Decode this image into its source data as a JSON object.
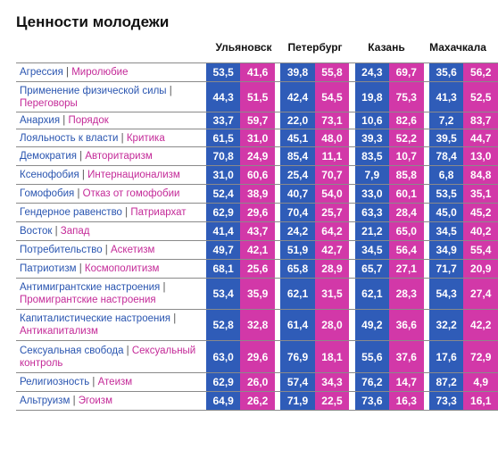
{
  "title": "Ценности молодежи",
  "colors": {
    "left_value": "#2f5cb8",
    "right_value": "#d238a8",
    "left_label": "#2a55b0",
    "right_label": "#c42a98"
  },
  "cities": [
    "Ульяновск",
    "Петербург",
    "Казань",
    "Махачкала"
  ],
  "chart_data": {
    "type": "table",
    "title": "Ценности молодежи",
    "columns": [
      "Ульяновск",
      "Петербург",
      "Казань",
      "Махачкала"
    ],
    "rows": [
      {
        "left": "Агрессия",
        "right": "Миролюбие",
        "values": [
          [
            53.5,
            41.6
          ],
          [
            39.8,
            55.8
          ],
          [
            24.3,
            69.7
          ],
          [
            35.6,
            56.2
          ]
        ]
      },
      {
        "left": "Применение физической силы",
        "right": "Переговоры",
        "values": [
          [
            44.3,
            51.5
          ],
          [
            42.4,
            54.5
          ],
          [
            19.8,
            75.3
          ],
          [
            41.3,
            52.5
          ]
        ]
      },
      {
        "left": "Анархия",
        "right": "Порядок",
        "values": [
          [
            33.7,
            59.7
          ],
          [
            22.0,
            73.1
          ],
          [
            10.6,
            82.6
          ],
          [
            7.2,
            83.7
          ]
        ]
      },
      {
        "left": "Лояльность к власти",
        "right": "Критика",
        "values": [
          [
            61.5,
            31.0
          ],
          [
            45.1,
            48.0
          ],
          [
            39.3,
            52.2
          ],
          [
            39.5,
            44.7
          ]
        ]
      },
      {
        "left": "Демократия",
        "right": "Авторитаризм",
        "values": [
          [
            70.8,
            24.9
          ],
          [
            85.4,
            11.1
          ],
          [
            83.5,
            10.7
          ],
          [
            78.4,
            13.0
          ]
        ]
      },
      {
        "left": "Ксенофобия",
        "right": "Интернационализм",
        "values": [
          [
            31.0,
            60.6
          ],
          [
            25.4,
            70.7
          ],
          [
            7.9,
            85.8
          ],
          [
            6.8,
            84.8
          ]
        ]
      },
      {
        "left": "Гомофобия",
        "right": "Отказ от гомофобии",
        "values": [
          [
            52.4,
            38.9
          ],
          [
            40.7,
            54.0
          ],
          [
            33.0,
            60.1
          ],
          [
            53.5,
            35.1
          ]
        ]
      },
      {
        "left": "Гендерное равенство",
        "right": "Патриархат",
        "values": [
          [
            62.9,
            29.6
          ],
          [
            70.4,
            25.7
          ],
          [
            63.3,
            28.4
          ],
          [
            45.0,
            45.2
          ]
        ]
      },
      {
        "left": "Восток",
        "right": "Запад",
        "values": [
          [
            41.4,
            43.7
          ],
          [
            24.2,
            64.2
          ],
          [
            21.2,
            65.0
          ],
          [
            34.5,
            40.2
          ]
        ]
      },
      {
        "left": "Потребительство",
        "right": "Аскетизм",
        "values": [
          [
            49.7,
            42.1
          ],
          [
            51.9,
            42.7
          ],
          [
            34.5,
            56.4
          ],
          [
            34.9,
            55.4
          ]
        ]
      },
      {
        "left": "Патриотизм",
        "right": "Космополитизм",
        "values": [
          [
            68.1,
            25.6
          ],
          [
            65.8,
            28.9
          ],
          [
            65.7,
            27.1
          ],
          [
            71.7,
            20.9
          ]
        ]
      },
      {
        "left": "Антимигрантские настроения",
        "right": "Промигрантские настроения",
        "values": [
          [
            53.4,
            35.9
          ],
          [
            62.1,
            31.5
          ],
          [
            62.1,
            28.3
          ],
          [
            54.3,
            27.4
          ]
        ]
      },
      {
        "left": "Капиталистические настроения",
        "right": "Антикапитализм",
        "values": [
          [
            52.8,
            32.8
          ],
          [
            61.4,
            28.0
          ],
          [
            49.2,
            36.6
          ],
          [
            32.2,
            42.2
          ]
        ]
      },
      {
        "left": "Сексуальная свобода",
        "right": "Сексуальный контроль",
        "values": [
          [
            63.0,
            29.6
          ],
          [
            76.9,
            18.1
          ],
          [
            55.6,
            37.6
          ],
          [
            17.6,
            72.9
          ]
        ]
      },
      {
        "left": "Религиозность",
        "right": "Атеизм",
        "values": [
          [
            62.9,
            26.0
          ],
          [
            57.4,
            34.3
          ],
          [
            76.2,
            14.7
          ],
          [
            87.2,
            4.9
          ]
        ]
      },
      {
        "left": "Альтруизм",
        "right": "Эгоизм",
        "values": [
          [
            64.9,
            26.2
          ],
          [
            71.9,
            22.5
          ],
          [
            73.6,
            16.3
          ],
          [
            73.3,
            16.1
          ]
        ]
      }
    ]
  }
}
